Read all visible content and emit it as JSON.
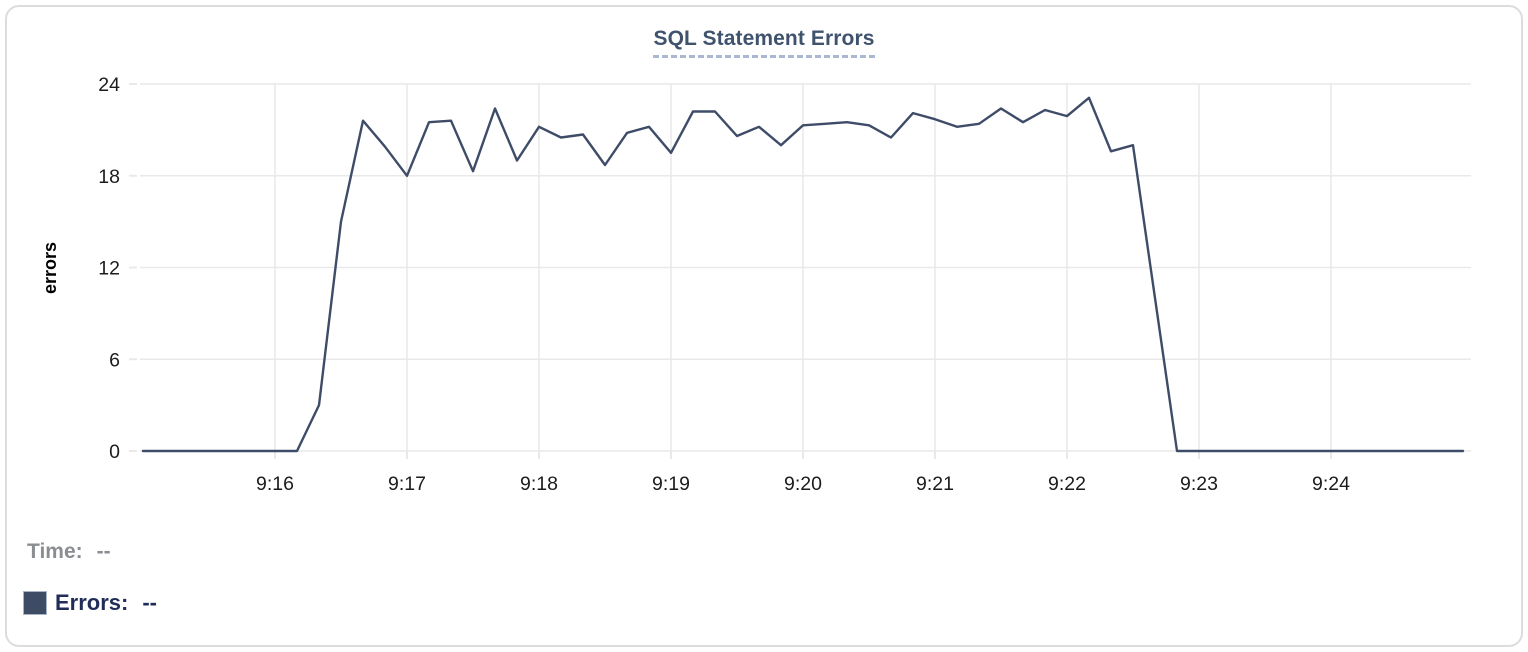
{
  "panel": {
    "title": "SQL Statement Errors"
  },
  "legend": {
    "time_label": "Time:",
    "time_value": "--",
    "errors_label": "Errors:",
    "errors_value": "--"
  },
  "colors": {
    "series_line": "#3e4c68",
    "legend_swatch": "#3d4b64",
    "title_text": "#40536e",
    "title_underline": "#aab8d4",
    "time_legend_text": "#8a8d91",
    "errors_legend_text": "#1f2d58",
    "gridline": "#e9e9e9",
    "axis_tick_text": "#1c1c1e",
    "card_border": "#dcdcdc"
  },
  "chart_data": {
    "type": "line",
    "title": "SQL Statement Errors",
    "xlabel": "",
    "ylabel": "errors",
    "ylim": [
      0,
      24
    ],
    "y_ticks": [
      0,
      6,
      12,
      18,
      24
    ],
    "x_ticks": [
      "9:16",
      "9:17",
      "9:18",
      "9:19",
      "9:20",
      "9:21",
      "9:22",
      "9:23",
      "9:24"
    ],
    "x_visible_range": [
      "9:15:00",
      "9:25:05"
    ],
    "sample_interval_seconds": 10,
    "grid": true,
    "legend_position": "bottom-left",
    "series": [
      {
        "name": "Errors",
        "color": "#3e4c68",
        "x": [
          "9:15:00",
          "9:15:10",
          "9:15:20",
          "9:15:30",
          "9:15:40",
          "9:15:50",
          "9:16:00",
          "9:16:10",
          "9:16:20",
          "9:16:30",
          "9:16:40",
          "9:16:50",
          "9:17:00",
          "9:17:10",
          "9:17:20",
          "9:17:30",
          "9:17:40",
          "9:17:50",
          "9:18:00",
          "9:18:10",
          "9:18:20",
          "9:18:30",
          "9:18:40",
          "9:18:50",
          "9:19:00",
          "9:19:10",
          "9:19:20",
          "9:19:30",
          "9:19:40",
          "9:19:50",
          "9:20:00",
          "9:20:10",
          "9:20:20",
          "9:20:30",
          "9:20:40",
          "9:20:50",
          "9:21:00",
          "9:21:10",
          "9:21:20",
          "9:21:30",
          "9:21:40",
          "9:21:50",
          "9:22:00",
          "9:22:10",
          "9:22:20",
          "9:22:30",
          "9:22:40",
          "9:22:50",
          "9:23:00",
          "9:23:10",
          "9:23:20",
          "9:23:30",
          "9:23:40",
          "9:23:50",
          "9:24:00",
          "9:24:10",
          "9:24:20",
          "9:24:30",
          "9:24:40",
          "9:24:50",
          "9:25:00"
        ],
        "values": [
          0,
          0,
          0,
          0,
          0,
          0,
          0,
          0,
          3,
          15,
          21.6,
          19.9,
          18,
          21.5,
          21.6,
          18.3,
          22.4,
          19,
          21.2,
          20.5,
          20.7,
          18.7,
          20.8,
          21.2,
          19.5,
          22.2,
          22.2,
          20.6,
          21.2,
          20,
          21.3,
          21.4,
          21.5,
          21.3,
          20.5,
          22.1,
          21.7,
          21.2,
          21.4,
          22.4,
          21.5,
          22.3,
          21.9,
          23.1,
          19.6,
          20,
          10,
          0,
          0,
          0,
          0,
          0,
          0,
          0,
          0,
          0,
          0,
          0,
          0,
          0,
          0
        ]
      }
    ]
  }
}
